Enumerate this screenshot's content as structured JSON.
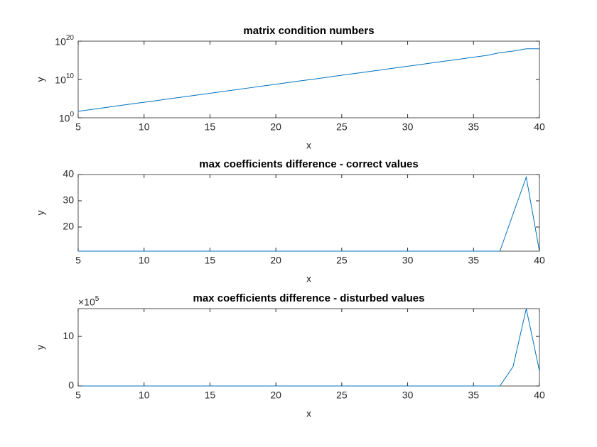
{
  "chart_data": [
    {
      "type": "line",
      "title": "matrix condition numbers",
      "xlabel": "x",
      "ylabel": "y",
      "yscale": "log",
      "color": "#0072bd",
      "x": [
        5,
        6,
        7,
        8,
        9,
        10,
        11,
        12,
        13,
        14,
        15,
        16,
        17,
        18,
        19,
        20,
        21,
        22,
        23,
        24,
        25,
        26,
        27,
        28,
        29,
        30,
        31,
        32,
        33,
        34,
        35,
        36,
        37,
        38,
        39,
        40
      ],
      "values": [
        50.0,
        150.0,
        440.0,
        1300.0,
        3800.0,
        11000.0,
        33000.0,
        98000.0,
        290000.0,
        850000.0,
        2500000.0,
        7400000.0,
        22000000.0,
        65000000.0,
        190000000.0,
        560000000.0,
        1700000000.0,
        4900000000.0,
        14000000000.0,
        43000000000.0,
        130000000000.0,
        370000000000.0,
        1100000000000.0,
        3200000000000.0,
        9500000000000.0,
        28000000000000.0,
        83000000000000.0,
        250000000000000.0,
        720000000000000.0,
        2100000000000000.0,
        6300000000000000.0,
        1.9e+16,
        1e+17,
        2.5e+17,
        1e+18,
        1e+18
      ],
      "xlim": [
        5,
        40
      ],
      "xticks": [
        5,
        10,
        15,
        20,
        25,
        30,
        35,
        40
      ],
      "ylim": [
        1,
        1e+20
      ],
      "yticks": [
        {
          "value": 1,
          "label": "10",
          "exponent": "0"
        },
        {
          "value": 10000000000.0,
          "label": "10",
          "exponent": "10"
        },
        {
          "value": 1e+20,
          "label": "10",
          "exponent": "20"
        }
      ]
    },
    {
      "type": "line",
      "title": "max coefficients difference - correct values",
      "xlabel": "x",
      "ylabel": "y",
      "color": "#0072bd",
      "x": [
        5,
        6,
        7,
        8,
        9,
        10,
        11,
        12,
        13,
        14,
        15,
        16,
        17,
        18,
        19,
        20,
        21,
        22,
        23,
        24,
        25,
        26,
        27,
        28,
        29,
        30,
        31,
        32,
        33,
        34,
        35,
        36,
        37,
        38,
        39,
        40
      ],
      "values": [
        10.8,
        10.8,
        10.8,
        10.8,
        10.8,
        10.8,
        10.8,
        10.8,
        10.8,
        10.8,
        10.8,
        10.8,
        10.8,
        10.8,
        10.8,
        10.8,
        10.8,
        10.8,
        10.8,
        10.8,
        10.8,
        10.8,
        10.8,
        10.8,
        10.8,
        10.8,
        10.8,
        10.8,
        10.8,
        10.8,
        10.8,
        10.8,
        10.8,
        25,
        39,
        10.8
      ],
      "xlim": [
        5,
        40
      ],
      "xticks": [
        5,
        10,
        15,
        20,
        25,
        30,
        35,
        40
      ],
      "ylim": [
        10.8,
        40
      ],
      "yticks": [
        20,
        30,
        40
      ]
    },
    {
      "type": "line",
      "title": "max coefficients difference - disturbed values",
      "xlabel": "x",
      "ylabel": "y",
      "color": "#0072bd",
      "x": [
        5,
        6,
        7,
        8,
        9,
        10,
        11,
        12,
        13,
        14,
        15,
        16,
        17,
        18,
        19,
        20,
        21,
        22,
        23,
        24,
        25,
        26,
        27,
        28,
        29,
        30,
        31,
        32,
        33,
        34,
        35,
        36,
        37,
        38,
        39,
        40
      ],
      "values": [
        0,
        0,
        0,
        0,
        0,
        0,
        0,
        0,
        0,
        0,
        0,
        0,
        0,
        0,
        0,
        0,
        0,
        0,
        0,
        0,
        0,
        0,
        0,
        0,
        0,
        0,
        0,
        0,
        0,
        0,
        0,
        0,
        0,
        390000,
        1560000,
        300000
      ],
      "xlim": [
        5,
        40
      ],
      "xticks": [
        5,
        10,
        15,
        20,
        25,
        30,
        35,
        40
      ],
      "ylim": [
        0,
        1560000
      ],
      "yticks": [
        0,
        {
          "value": 1000000,
          "label": "10"
        }
      ],
      "y_multiplier": {
        "label": "×10",
        "exponent": "5"
      }
    }
  ]
}
